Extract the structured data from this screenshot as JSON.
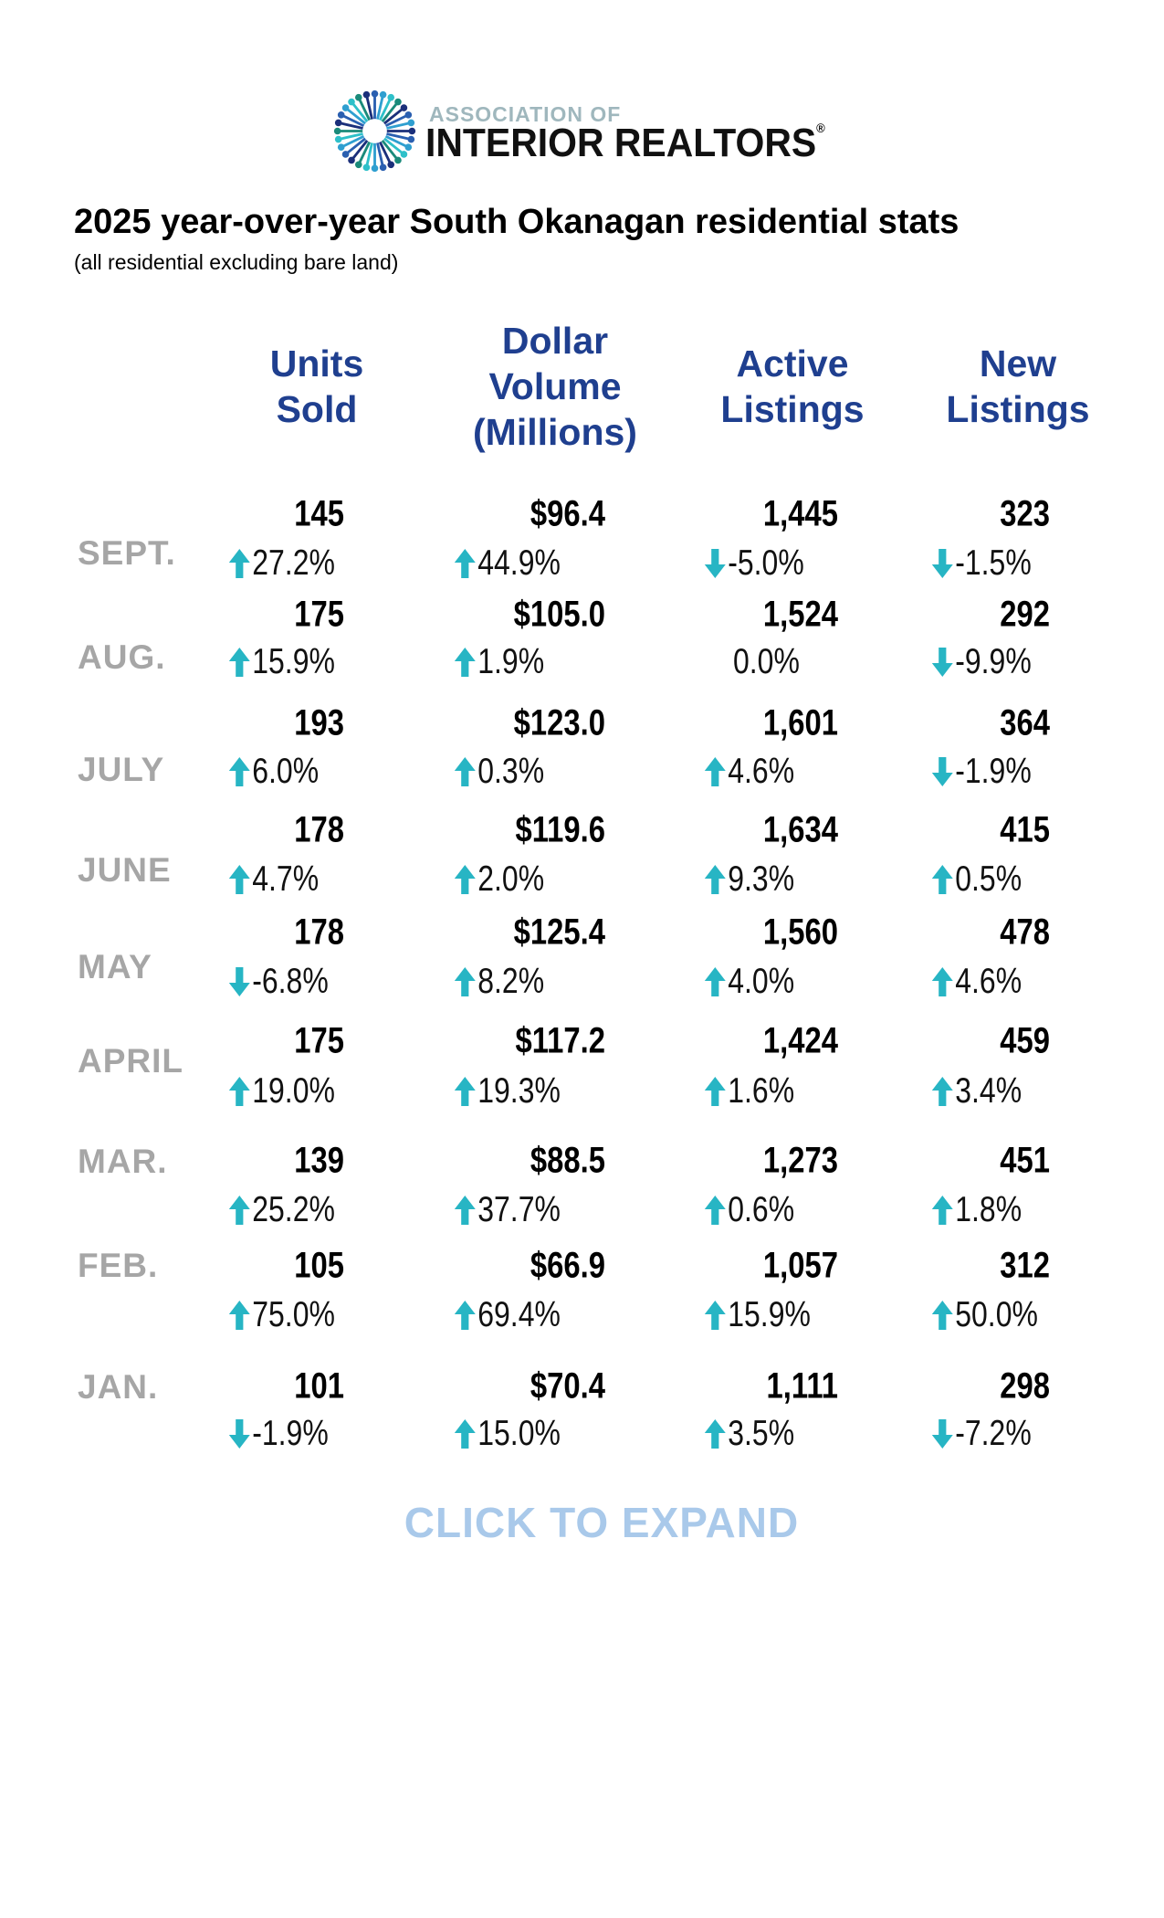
{
  "logo": {
    "line1": "ASSOCIATION OF",
    "line2": "INTERIOR REALTORS",
    "mark": "®"
  },
  "title": "2025 year-over-year South Okanagan residential stats",
  "subtitle": "(all residential excluding bare land)",
  "headers": [
    {
      "lines": [
        "Units",
        "Sold"
      ]
    },
    {
      "lines": [
        "Dollar",
        "Volume",
        "(Millions)"
      ]
    },
    {
      "lines": [
        "Active",
        "Listings"
      ]
    },
    {
      "lines": [
        "New",
        "Listings"
      ]
    }
  ],
  "colors": {
    "header": "#1f3f8f",
    "month": "#a6a6a6",
    "arrow": "#27b5c4",
    "expand": "#a9c9ea"
  },
  "rows": [
    {
      "month": "SEPT.",
      "cells": [
        {
          "value": "145",
          "change": "27.2%",
          "dir": "up"
        },
        {
          "value": "$96.4",
          "change": "44.9%",
          "dir": "up"
        },
        {
          "value": "1,445",
          "change": "-5.0%",
          "dir": "down"
        },
        {
          "value": "323",
          "change": "-1.5%",
          "dir": "down"
        }
      ]
    },
    {
      "month": "AUG.",
      "cells": [
        {
          "value": "175",
          "change": "15.9%",
          "dir": "up"
        },
        {
          "value": "$105.0",
          "change": "1.9%",
          "dir": "up"
        },
        {
          "value": "1,524",
          "change": "0.0%",
          "dir": "none"
        },
        {
          "value": "292",
          "change": "-9.9%",
          "dir": "down"
        }
      ]
    },
    {
      "month": "JULY",
      "cells": [
        {
          "value": "193",
          "change": "6.0%",
          "dir": "up"
        },
        {
          "value": "$123.0",
          "change": "0.3%",
          "dir": "up"
        },
        {
          "value": "1,601",
          "change": "4.6%",
          "dir": "up"
        },
        {
          "value": "364",
          "change": "-1.9%",
          "dir": "down"
        }
      ]
    },
    {
      "month": "JUNE",
      "cells": [
        {
          "value": "178",
          "change": "4.7%",
          "dir": "up"
        },
        {
          "value": "$119.6",
          "change": "2.0%",
          "dir": "up"
        },
        {
          "value": "1,634",
          "change": "9.3%",
          "dir": "up"
        },
        {
          "value": "415",
          "change": "0.5%",
          "dir": "up"
        }
      ]
    },
    {
      "month": "MAY",
      "cells": [
        {
          "value": "178",
          "change": "-6.8%",
          "dir": "down"
        },
        {
          "value": "$125.4",
          "change": "8.2%",
          "dir": "up"
        },
        {
          "value": "1,560",
          "change": "4.0%",
          "dir": "up"
        },
        {
          "value": "478",
          "change": "4.6%",
          "dir": "up"
        }
      ]
    },
    {
      "month": "APRIL",
      "cells": [
        {
          "value": "175",
          "change": "19.0%",
          "dir": "up"
        },
        {
          "value": "$117.2",
          "change": "19.3%",
          "dir": "up"
        },
        {
          "value": "1,424",
          "change": "1.6%",
          "dir": "up"
        },
        {
          "value": "459",
          "change": "3.4%",
          "dir": "up"
        }
      ]
    },
    {
      "month": "MAR.",
      "cells": [
        {
          "value": "139",
          "change": "25.2%",
          "dir": "up"
        },
        {
          "value": "$88.5",
          "change": "37.7%",
          "dir": "up"
        },
        {
          "value": "1,273",
          "change": "0.6%",
          "dir": "up"
        },
        {
          "value": "451",
          "change": "1.8%",
          "dir": "up"
        }
      ]
    },
    {
      "month": "FEB.",
      "cells": [
        {
          "value": "105",
          "change": "75.0%",
          "dir": "up"
        },
        {
          "value": "$66.9",
          "change": "69.4%",
          "dir": "up"
        },
        {
          "value": "1,057",
          "change": "15.9%",
          "dir": "up"
        },
        {
          "value": "312",
          "change": "50.0%",
          "dir": "up"
        }
      ]
    },
    {
      "month": "JAN.",
      "cells": [
        {
          "value": "101",
          "change": "-1.9%",
          "dir": "down"
        },
        {
          "value": "$70.4",
          "change": "15.0%",
          "dir": "up"
        },
        {
          "value": "1,111",
          "change": "3.5%",
          "dir": "up"
        },
        {
          "value": "298",
          "change": "-7.2%",
          "dir": "down"
        }
      ]
    }
  ],
  "expand_label": "CLICK TO EXPAND"
}
